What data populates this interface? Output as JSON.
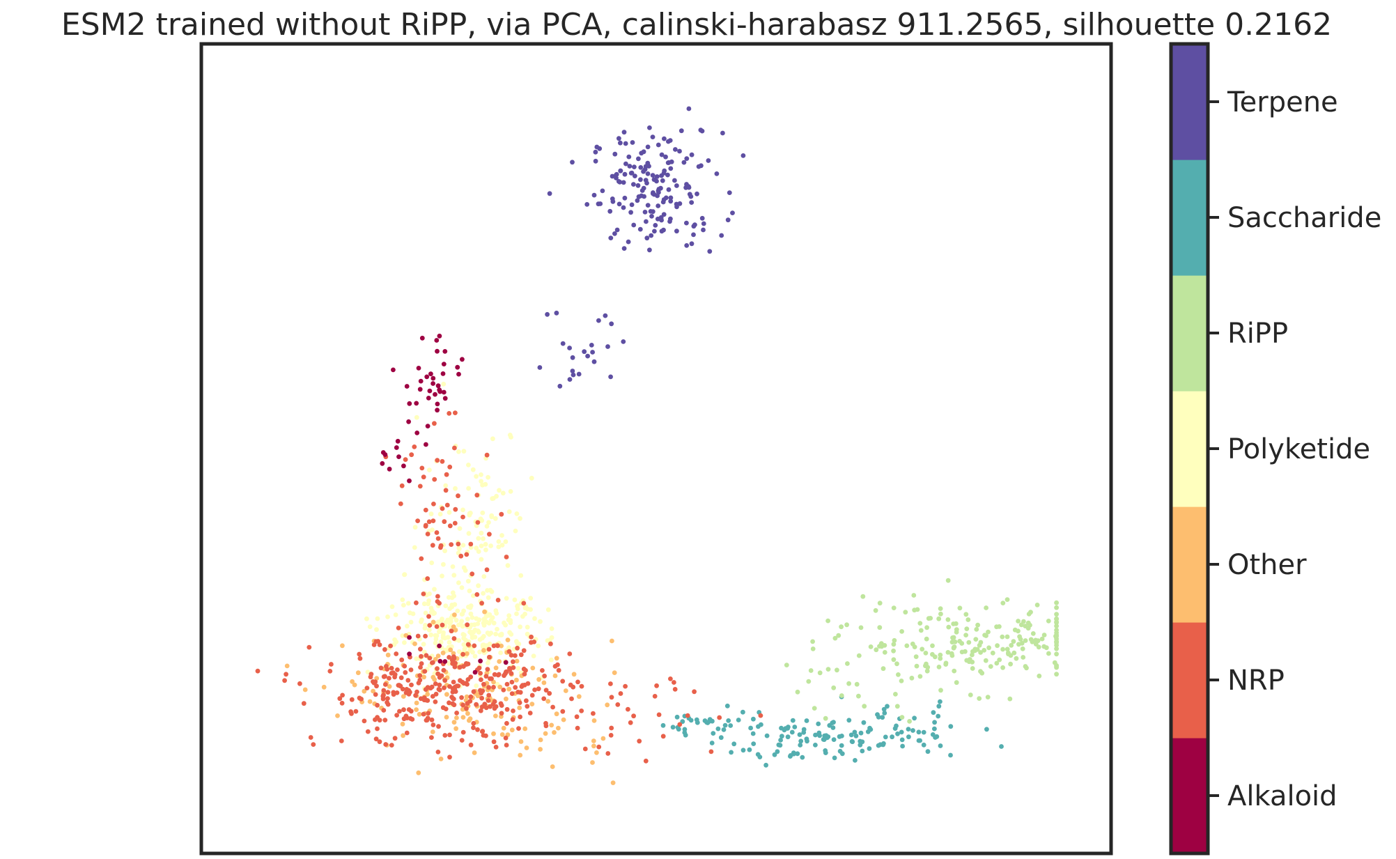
{
  "chart_data": {
    "type": "scatter",
    "title": "ESM2 trained without RiPP, via PCA, calinski-harabasz 911.2565, silhouette 0.2162",
    "xlabel": "",
    "ylabel": "",
    "xlim": [
      0,
      100
    ],
    "ylim": [
      0,
      100
    ],
    "grid": false,
    "legend": "colorbar-right",
    "categories": [
      "Alkaloid",
      "NRP",
      "Other",
      "Polyketide",
      "RiPP",
      "Saccharide",
      "Terpene"
    ],
    "colors": {
      "Alkaloid": "#9e0142",
      "NRP": "#e8604a",
      "Other": "#fdbe6f",
      "Polyketide": "#ffffbe",
      "RiPP": "#bfe59d",
      "Saccharide": "#54aeaf",
      "Terpene": "#5e4fa2"
    },
    "series": [
      {
        "name": "Terpene",
        "clusters": [
          {
            "cx": 50,
            "cy": 82,
            "sx": 3.6,
            "sy": 3.6,
            "n": 170
          },
          {
            "cx": 42,
            "cy": 63,
            "sx": 2.8,
            "sy": 3.2,
            "n": 22
          }
        ]
      },
      {
        "name": "Saccharide",
        "clusters": [
          {
            "cx": 56,
            "cy": 16,
            "sx": 2.6,
            "sy": 1.2,
            "n": 35
          },
          {
            "cx": 66,
            "cy": 14,
            "sx": 3.8,
            "sy": 1.3,
            "n": 70
          },
          {
            "cx": 76,
            "cy": 15,
            "sx": 4.6,
            "sy": 1.6,
            "n": 55
          }
        ]
      },
      {
        "name": "RiPP",
        "clusters": [
          {
            "cx": 85,
            "cy": 26,
            "sx": 7.2,
            "sy": 2.6,
            "n": 200
          },
          {
            "cx": 72,
            "cy": 22,
            "sx": 4.2,
            "sy": 3.2,
            "n": 25
          }
        ]
      },
      {
        "name": "Polyketide",
        "clusters": [
          {
            "cx": 29,
            "cy": 27,
            "sx": 4.5,
            "sy": 2.6,
            "n": 280
          },
          {
            "cx": 30,
            "cy": 41,
            "sx": 3.0,
            "sy": 6.0,
            "n": 110
          }
        ]
      },
      {
        "name": "Other",
        "clusters": [
          {
            "cx": 29,
            "cy": 20,
            "sx": 6.5,
            "sy": 3.6,
            "n": 140
          },
          {
            "cx": 38,
            "cy": 16,
            "sx": 4.0,
            "sy": 3.0,
            "n": 25
          }
        ]
      },
      {
        "name": "NRP",
        "clusters": [
          {
            "cx": 27,
            "cy": 20,
            "sx": 7.0,
            "sy": 3.3,
            "n": 330
          },
          {
            "cx": 27,
            "cy": 40,
            "sx": 3.0,
            "sy": 6.0,
            "n": 65
          },
          {
            "cx": 48,
            "cy": 18,
            "sx": 6.0,
            "sy": 3.0,
            "n": 30
          }
        ]
      },
      {
        "name": "Alkaloid",
        "clusters": [
          {
            "cx": 26,
            "cy": 59,
            "sx": 1.6,
            "sy": 2.8,
            "n": 30
          },
          {
            "cx": 22,
            "cy": 51,
            "sx": 1.5,
            "sy": 2.6,
            "n": 14
          },
          {
            "cx": 27,
            "cy": 25,
            "sx": 3.0,
            "sy": 2.4,
            "n": 8
          }
        ]
      }
    ]
  }
}
